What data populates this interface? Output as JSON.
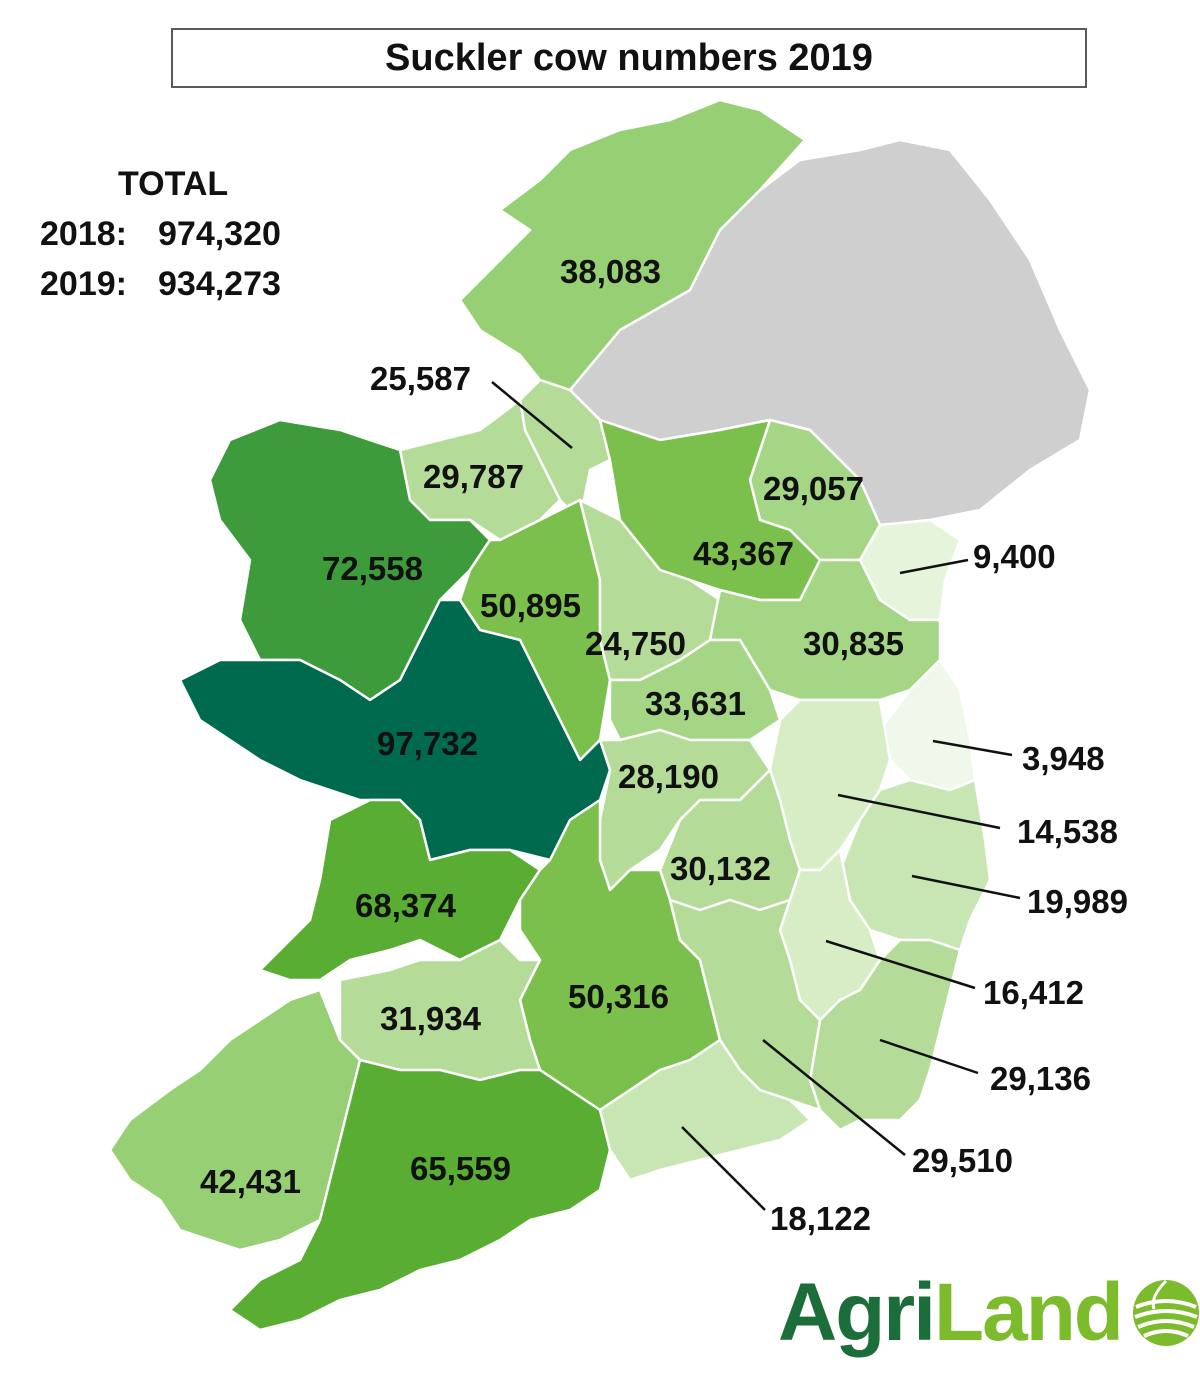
{
  "title": "Suckler cow numbers 2019",
  "totals": {
    "heading": "TOTAL",
    "rows": [
      {
        "year": "2018:",
        "value": "974,320"
      },
      {
        "year": "2019:",
        "value": "934,273"
      }
    ]
  },
  "counties": [
    {
      "label": "38,083",
      "value": 38083,
      "color": "#97cf74"
    },
    {
      "label": "25,587",
      "value": 25587,
      "color": "#b4dc98"
    },
    {
      "label": "29,787",
      "value": 29787,
      "color": "#b4dc98"
    },
    {
      "label": "29,057",
      "value": 29057,
      "color": "#a5d686"
    },
    {
      "label": "72,558",
      "value": 72558,
      "color": "#3e9b3b"
    },
    {
      "label": "50,895",
      "value": 50895,
      "color": "#7bbf4c"
    },
    {
      "label": "43,367",
      "value": 43367,
      "color": "#7bbf4c"
    },
    {
      "label": "9,400",
      "value": 9400,
      "color": "#e6f4dc"
    },
    {
      "label": "24,750",
      "value": 24750,
      "color": "#b4dc98"
    },
    {
      "label": "30,835",
      "value": 30835,
      "color": "#a5d686"
    },
    {
      "label": "33,631",
      "value": 33631,
      "color": "#a5d686"
    },
    {
      "label": "97,732",
      "value": 97732,
      "color": "#006a4e"
    },
    {
      "label": "3,948",
      "value": 3948,
      "color": "#f0f8eb"
    },
    {
      "label": "28,190",
      "value": 28190,
      "color": "#b4dc98"
    },
    {
      "label": "14,538",
      "value": 14538,
      "color": "#d6edc6"
    },
    {
      "label": "30,132",
      "value": 30132,
      "color": "#b4dc98"
    },
    {
      "label": "19,989",
      "value": 19989,
      "color": "#c8e6b3"
    },
    {
      "label": "68,374",
      "value": 68374,
      "color": "#59ad32"
    },
    {
      "label": "16,412",
      "value": 16412,
      "color": "#d6edc6"
    },
    {
      "label": "50,316",
      "value": 50316,
      "color": "#7bbf4c"
    },
    {
      "label": "31,934",
      "value": 31934,
      "color": "#b4dc98"
    },
    {
      "label": "29,136",
      "value": 29136,
      "color": "#b4dc98"
    },
    {
      "label": "29,510",
      "value": 29510,
      "color": "#b4dc98"
    },
    {
      "label": "42,431",
      "value": 42431,
      "color": "#97cf74"
    },
    {
      "label": "65,559",
      "value": 65559,
      "color": "#59ad32"
    },
    {
      "label": "18,122",
      "value": 18122,
      "color": "#c8e6b3"
    }
  ],
  "northern_ireland_color": "#cfcfcf",
  "border_color": "#ffffff",
  "logo": {
    "part1": "Agri",
    "part2": "Land",
    "color_dark": "#1b6e3a",
    "color_light": "#7cbb2b",
    "icon": "globe-field-icon"
  }
}
